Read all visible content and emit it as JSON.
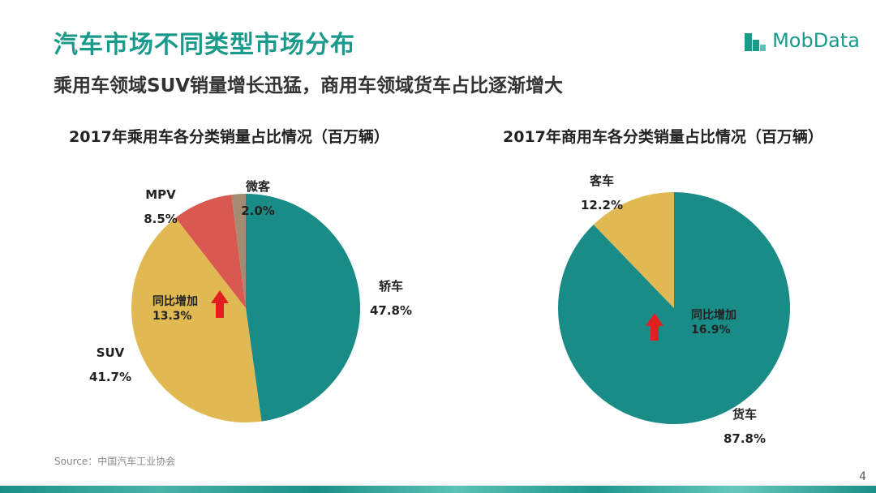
{
  "header": {
    "title": "汽车市场不同类型市场分布",
    "subtitle": "乘用车领域SUV销量增长迅猛，商用车领域货车占比逐渐增大",
    "logo_text": "MobData"
  },
  "colors": {
    "teal": "#1a8c88",
    "gold": "#e1b952",
    "red": "#d9584f",
    "brown": "#a58b72",
    "title_teal": "#1a9a8b",
    "arrow": "#e31e1e"
  },
  "chart_data": [
    {
      "type": "pie",
      "title": "2017年乘用车各分类销量占比情况（百万辆）",
      "labels": [
        "轿车",
        "SUV",
        "MPV",
        "微客"
      ],
      "values": [
        47.8,
        41.7,
        8.5,
        2.0
      ],
      "value_labels": [
        "47.8%",
        "41.7%",
        "8.5%",
        "2.0%"
      ],
      "colors": [
        "#1a8c88",
        "#e1b952",
        "#d9584f",
        "#a58b72"
      ],
      "annotation": {
        "label": "同比增加",
        "value": "13.3%",
        "icon": "up-arrow-icon"
      }
    },
    {
      "type": "pie",
      "title": "2017年商用车各分类销量占比情况（百万辆）",
      "labels": [
        "货车",
        "客车"
      ],
      "values": [
        87.8,
        12.2
      ],
      "value_labels": [
        "87.8%",
        "12.2%"
      ],
      "colors": [
        "#1a8c88",
        "#e1b952"
      ],
      "annotation": {
        "label": "同比增加",
        "value": "16.9%",
        "icon": "up-arrow-icon"
      }
    }
  ],
  "footer": {
    "source": "Source：中国汽车工业协会",
    "page_number": "4"
  }
}
